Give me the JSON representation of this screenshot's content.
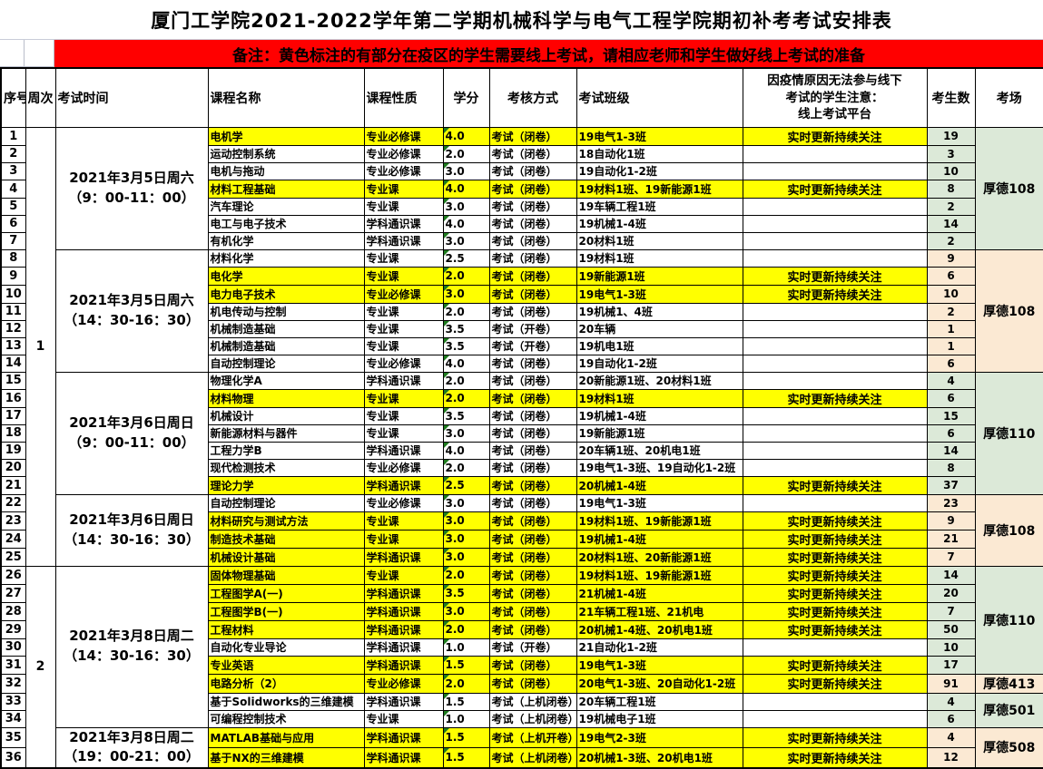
{
  "title": "厦门工学院2021-2022学年第二学期机械科学与电气工程学院期初补考考试安排表",
  "banner": "备注：黄色标注的有部分在疫区的学生需要线上考试，请相应老师和学生做好线上考试的准备",
  "columns": [
    "序号",
    "周次",
    "考试时间",
    "课程名称",
    "课程性质",
    "学分",
    "考核方式",
    "考试班级",
    [
      "因疫情原因无法参与线下",
      "考试的学生注意：",
      "线上考试平台"
    ],
    "考生数",
    "考场"
  ],
  "colors": {
    "highlight_yellow": "#FFFF00",
    "banner_red": "#FF0000",
    "cell_green": "#DCE9D8",
    "cell_cream": "#FBE9D3",
    "flag_green": "#1E7B1E"
  },
  "week_groups": [
    {
      "label": "1",
      "start": 1,
      "span": 25
    },
    {
      "label": "2",
      "start": 26,
      "span": 11
    }
  ],
  "time_groups": [
    {
      "line1": "2021年3月5日周六",
      "line2": "（9：00-11：00）",
      "start": 1,
      "span": 7
    },
    {
      "line1": "2021年3月5日周六",
      "line2": "（14：30-16：30）",
      "start": 8,
      "span": 7
    },
    {
      "line1": "2021年3月6日周日",
      "line2": "（9：00-11：00）",
      "start": 15,
      "span": 7
    },
    {
      "line1": "2021年3月6日周日",
      "line2": "（14：30-16：30）",
      "start": 22,
      "span": 4
    },
    {
      "line1": "2021年3月8日周二",
      "line2": "（14：30-16：30）",
      "start": 26,
      "span": 9
    },
    {
      "line1": "2021年3月8日周二",
      "line2": "（19：00-21：00）",
      "start": 35,
      "span": 2
    }
  ],
  "room_groups": [
    {
      "room": "厚德108",
      "start": 1,
      "span": 7,
      "tint": "green"
    },
    {
      "room": "厚德108",
      "start": 8,
      "span": 7,
      "tint": "cream"
    },
    {
      "room": "厚德110",
      "start": 15,
      "span": 7,
      "tint": "green"
    },
    {
      "room": "厚德108",
      "start": 22,
      "span": 4,
      "tint": "cream"
    },
    {
      "room": "厚德110",
      "start": 26,
      "span": 6,
      "tint": "green"
    },
    {
      "room": "厚德413",
      "start": 32,
      "span": 1,
      "tint": "cream"
    },
    {
      "room": "厚德501",
      "start": 33,
      "span": 2,
      "tint": "green"
    },
    {
      "room": "厚德508",
      "start": 35,
      "span": 2,
      "tint": "cream"
    }
  ],
  "rows": [
    {
      "no": "1",
      "course": "电机学",
      "nature": "专业必修课",
      "credit": "4.0",
      "method": "考试（闭卷）",
      "classes": "19电气1-3班",
      "online": "实时更新持续关注",
      "count": "19",
      "highlight": true
    },
    {
      "no": "2",
      "course": "运动控制系统",
      "nature": "专业必修课",
      "credit": "2.0",
      "method": "考试（闭卷）",
      "classes": "18自动化1班",
      "online": "",
      "count": "3",
      "highlight": false
    },
    {
      "no": "3",
      "course": "电机与拖动",
      "nature": "专业必修课",
      "credit": "3.0",
      "method": "考试（闭卷）",
      "classes": "19自动化1-2班",
      "online": "",
      "count": "10",
      "highlight": false
    },
    {
      "no": "4",
      "course": "材料工程基础",
      "nature": "专业课",
      "credit": "4.0",
      "method": "考试（闭卷）",
      "classes": "19材料1班、19新能源1班",
      "online": "实时更新持续关注",
      "count": "8",
      "highlight": true
    },
    {
      "no": "5",
      "course": "汽车理论",
      "nature": "专业课",
      "credit": "3.0",
      "method": "考试（闭卷）",
      "classes": "19车辆工程1班",
      "online": "",
      "count": "2",
      "highlight": false
    },
    {
      "no": "6",
      "course": "电工与电子技术",
      "nature": "学科通识课",
      "credit": "4.0",
      "method": "考试（闭卷）",
      "classes": "19机械1-4班",
      "online": "",
      "count": "14",
      "highlight": false
    },
    {
      "no": "7",
      "course": "有机化学",
      "nature": "学科通识课",
      "credit": "3.0",
      "method": "考试（闭卷）",
      "classes": "20材料1班",
      "online": "",
      "count": "2",
      "highlight": false
    },
    {
      "no": "8",
      "course": "材料化学",
      "nature": "专业课",
      "credit": "2.5",
      "method": "考试（闭卷）",
      "classes": "19材料1班",
      "online": "",
      "count": "9",
      "highlight": false
    },
    {
      "no": "9",
      "course": "电化学",
      "nature": "专业课",
      "credit": "2.0",
      "method": "考试（闭卷）",
      "classes": "19新能源1班",
      "online": "实时更新持续关注",
      "count": "6",
      "highlight": true
    },
    {
      "no": "10",
      "course": "电力电子技术",
      "nature": "专业必修课",
      "credit": "3.0",
      "method": "考试（闭卷）",
      "classes": "19电气1-3班",
      "online": "实时更新持续关注",
      "count": "10",
      "highlight": true
    },
    {
      "no": "11",
      "course": "机电传动与控制",
      "nature": "专业课",
      "credit": "2.0",
      "method": "考试（闭卷）",
      "classes": "19机械1、4班",
      "online": "",
      "count": "2",
      "highlight": false
    },
    {
      "no": "12",
      "course": "机械制造基础",
      "nature": "专业课",
      "credit": "3.5",
      "method": "考试（开卷）",
      "classes": "20车辆",
      "online": "",
      "count": "1",
      "highlight": false
    },
    {
      "no": "13",
      "course": "机械制造基础",
      "nature": "专业课",
      "credit": "3.5",
      "method": "考试（开卷）",
      "classes": "19机电1班",
      "online": "",
      "count": "1",
      "highlight": false
    },
    {
      "no": "14",
      "course": "自动控制理论",
      "nature": "专业必修课",
      "credit": "4.0",
      "method": "考试（闭卷）",
      "classes": "19自动化1-2班",
      "online": "",
      "count": "6",
      "highlight": false
    },
    {
      "no": "15",
      "course": "物理化学A",
      "nature": "学科通识课",
      "credit": "2.0",
      "method": "考试（闭卷）",
      "classes": "20新能源1班、20材料1班",
      "online": "",
      "count": "4",
      "highlight": false
    },
    {
      "no": "16",
      "course": "材料物理",
      "nature": "专业课",
      "credit": "2.0",
      "method": "考试（闭卷）",
      "classes": "19材料1班",
      "online": "实时更新持续关注",
      "count": "6",
      "highlight": true
    },
    {
      "no": "17",
      "course": "机械设计",
      "nature": "专业课",
      "credit": "3.5",
      "method": "考试（闭卷）",
      "classes": "19机械1-4班",
      "online": "",
      "count": "15",
      "highlight": false
    },
    {
      "no": "18",
      "course": "新能源材料与器件",
      "nature": "专业课",
      "credit": "3.0",
      "method": "考试（闭卷）",
      "classes": "19新能源1班",
      "online": "",
      "count": "6",
      "highlight": false
    },
    {
      "no": "19",
      "course": "工程力学B",
      "nature": "学科通识课",
      "credit": "4.0",
      "method": "考试（闭卷）",
      "classes": "20车辆1班、20机电1班",
      "online": "",
      "count": "14",
      "highlight": false
    },
    {
      "no": "20",
      "course": "现代检测技术",
      "nature": "专业必修课",
      "credit": "2.0",
      "method": "考试（闭卷）",
      "classes": "19电气1-3班、19自动化1-2班",
      "online": "",
      "count": "8",
      "highlight": false
    },
    {
      "no": "21",
      "course": "理论力学",
      "nature": "学科通识课",
      "credit": "2.5",
      "method": "考试（闭卷）",
      "classes": "20机械1-4班",
      "online": "实时更新持续关注",
      "count": "37",
      "highlight": true
    },
    {
      "no": "22",
      "course": "自动控制理论",
      "nature": "专业必修课",
      "credit": "3.0",
      "method": "考试（闭卷）",
      "classes": "19电气1-3班",
      "online": "",
      "count": "23",
      "highlight": false
    },
    {
      "no": "23",
      "course": "材料研究与测试方法",
      "nature": "专业课",
      "credit": "3.0",
      "method": "考试（闭卷）",
      "classes": "19材料1班、19新能源1班",
      "online": "实时更新持续关注",
      "count": "9",
      "highlight": true
    },
    {
      "no": "24",
      "course": "制造技术基础",
      "nature": "专业课",
      "credit": "3.0",
      "method": "考试（闭卷）",
      "classes": "19机械1-4班",
      "online": "实时更新持续关注",
      "count": "21",
      "highlight": true
    },
    {
      "no": "25",
      "course": "机械设计基础",
      "nature": "学科通识课",
      "credit": "3.0",
      "method": "考试（闭卷）",
      "classes": "20材料1班、20新能源1班",
      "online": "实时更新持续关注",
      "count": "7",
      "highlight": true
    },
    {
      "no": "26",
      "course": "固体物理基础",
      "nature": "专业课",
      "credit": "2.0",
      "method": "考试（闭卷）",
      "classes": "19材料1班、19新能源1班",
      "online": "实时更新持续关注",
      "count": "14",
      "highlight": true
    },
    {
      "no": "27",
      "course": "工程图学A(一)",
      "nature": "学科通识课",
      "credit": "3.5",
      "method": "考试（闭卷）",
      "classes": "21机械1-4班",
      "online": "实时更新持续关注",
      "count": "20",
      "highlight": true
    },
    {
      "no": "28",
      "course": "工程图学B(一)",
      "nature": "学科通识课",
      "credit": "3.0",
      "method": "考试（闭卷）",
      "classes": "21车辆工程1班、21机电",
      "online": "实时更新持续关注",
      "count": "7",
      "highlight": true
    },
    {
      "no": "29",
      "course": "工程材料",
      "nature": "学科通识课",
      "credit": "2.0",
      "method": "考试（闭卷）",
      "classes": "20机械1-4班、20机电1班",
      "online": "实时更新持续关注",
      "count": "50",
      "highlight": true
    },
    {
      "no": "30",
      "course": "自动化专业导论",
      "nature": "学科通识课",
      "credit": "1.0",
      "method": "考试（开卷）",
      "classes": "21自动化1-2班",
      "online": "",
      "count": "10",
      "highlight": false
    },
    {
      "no": "31",
      "course": "专业英语",
      "nature": "学科通识课",
      "credit": "1.5",
      "method": "考试（闭卷）",
      "classes": "19电气1-3班",
      "online": "实时更新持续关注",
      "count": "17",
      "highlight": true
    },
    {
      "no": "32",
      "course": "电路分析（2）",
      "nature": "专业必修课",
      "credit": "2.0",
      "method": "考试（闭卷）",
      "classes": "20电气1-3班、20自动化1-2班",
      "online": "实时更新持续关注",
      "count": "91",
      "highlight": true
    },
    {
      "no": "33",
      "course": "基于Solidworks的三维建模",
      "nature": "学科通识课",
      "credit": "1.5",
      "method": "考试（上机闭卷）",
      "classes": "20车辆工程1班",
      "online": "",
      "count": "4",
      "highlight": false
    },
    {
      "no": "34",
      "course": "可编程控制技术",
      "nature": "专业课",
      "credit": "1.0",
      "method": "考试（上机闭卷）",
      "classes": "19机械电子1班",
      "online": "",
      "count": "6",
      "highlight": false
    },
    {
      "no": "35",
      "course": "MATLAB基础与应用",
      "nature": "学科通识课",
      "credit": "1.5",
      "method": "考试（上机开卷）",
      "classes": "19电气2-3班",
      "online": "实时更新持续关注",
      "count": "4",
      "highlight": true
    },
    {
      "no": "36",
      "course": "基于NX的三维建模",
      "nature": "学科通识课",
      "credit": "1.5",
      "method": "考试（上机闭卷）",
      "classes": "20机械1-3班、20机电1班",
      "online": "实时更新持续关注",
      "count": "12",
      "highlight": true
    }
  ]
}
